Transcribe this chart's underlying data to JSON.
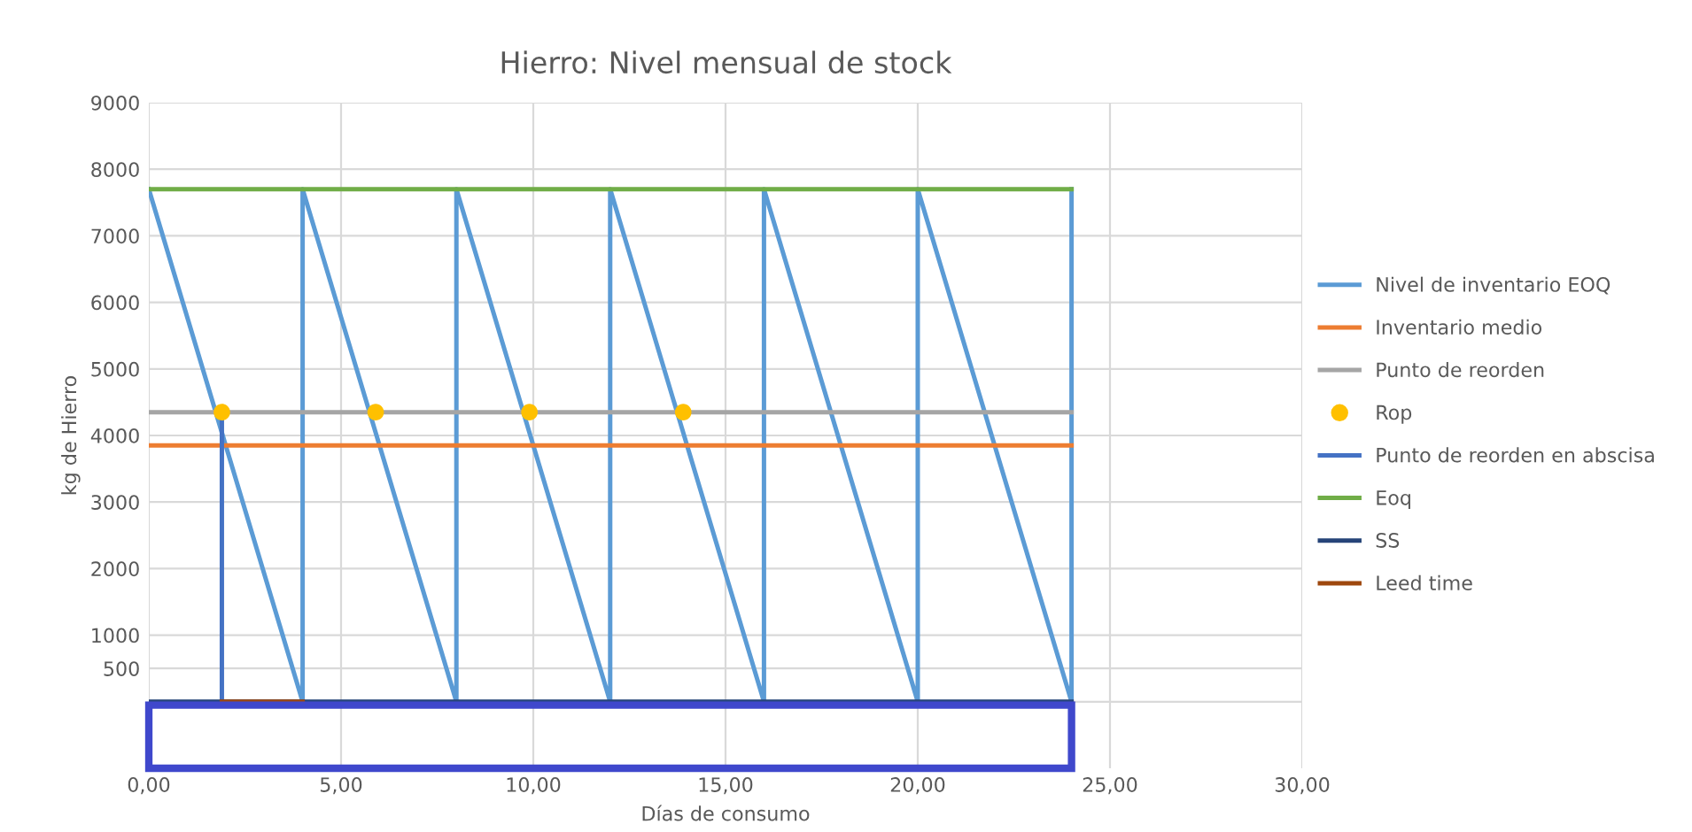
{
  "chart_data": {
    "type": "line",
    "title": "Hierro: Nivel mensual de stock",
    "xlabel": "Días de consumo",
    "ylabel": "kg de Hierro",
    "xlim": [
      0,
      30
    ],
    "xticks": [
      {
        "value": 0,
        "label": "0,00"
      },
      {
        "value": 5,
        "label": "5,00"
      },
      {
        "value": 10,
        "label": "10,00"
      },
      {
        "value": 15,
        "label": "15,00"
      },
      {
        "value": 20,
        "label": "20,00"
      },
      {
        "value": 25,
        "label": "25,00"
      },
      {
        "value": 30,
        "label": "30,00"
      }
    ],
    "ylim": [
      -1000,
      9000
    ],
    "yticks": [
      {
        "value": 0,
        "label": null
      },
      500,
      1000,
      2000,
      3000,
      4000,
      5000,
      6000,
      7000,
      8000,
      9000
    ],
    "grid": true,
    "legend": "right",
    "series": [
      {
        "name": "Nivel de inventario EOQ",
        "color": "#5b9bd5",
        "x": [
          0,
          4,
          4,
          8,
          8,
          12,
          12,
          16,
          16,
          20,
          20,
          24,
          24
        ],
        "values": [
          7700,
          0,
          7700,
          0,
          7700,
          0,
          7700,
          0,
          7700,
          0,
          7700,
          0,
          7700
        ]
      },
      {
        "name": "Inventario medio",
        "color": "#ed7d31",
        "x": [
          0,
          24
        ],
        "values": [
          3850,
          3850
        ]
      },
      {
        "name": "Punto de reorden",
        "color": "#a5a5a5",
        "x": [
          0,
          24
        ],
        "values": [
          4350,
          4350
        ]
      },
      {
        "name": "Rop",
        "type": "scatter",
        "marker": "circle",
        "color": "#ffc000",
        "x": [
          1.9,
          5.9,
          9.9,
          13.9
        ],
        "values": [
          4350,
          4350,
          4350,
          4350
        ]
      },
      {
        "name": "Punto de reorden en abscisa",
        "color": "#4472c4",
        "x": [
          1.9,
          1.9
        ],
        "values": [
          0,
          4350
        ]
      },
      {
        "name": "Eoq",
        "color": "#70ad47",
        "x": [
          0,
          24
        ],
        "values": [
          7700,
          7700
        ]
      },
      {
        "name": "SS",
        "color": "#264478",
        "x": [
          0,
          24
        ],
        "values": [
          0,
          0
        ]
      },
      {
        "name": "Leed time",
        "color": "#9e480e",
        "x": [
          1.9,
          4
        ],
        "values": [
          0,
          0
        ]
      }
    ]
  }
}
